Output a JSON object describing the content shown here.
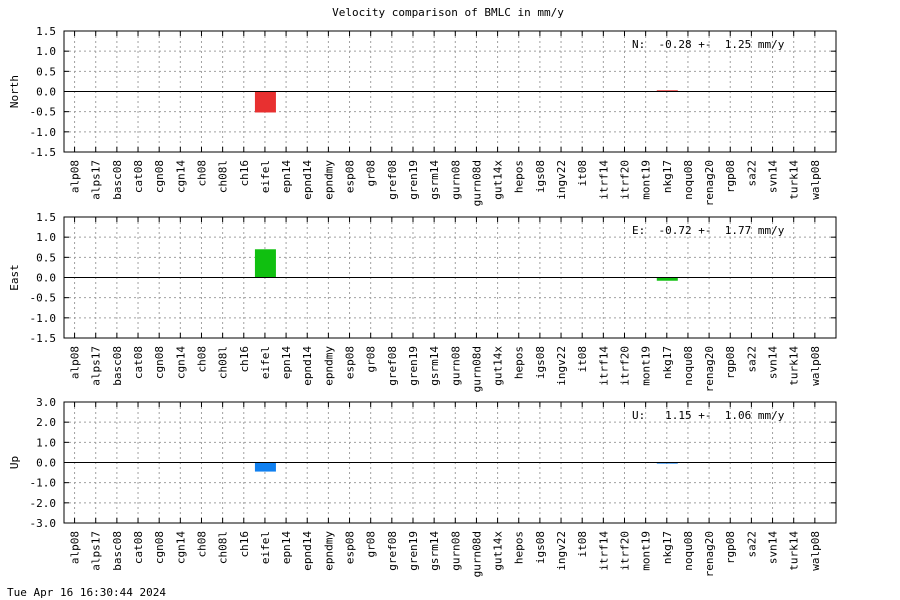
{
  "title": "Velocity comparison of BMLC in mm/y",
  "timestamp": "Tue Apr 16 16:30:44 2024",
  "colors": {
    "north": "#e83030",
    "east": "#10c010",
    "up": "#1080f0",
    "grid": "#a0a0a0"
  },
  "chart_data": [
    {
      "type": "bar",
      "ylabel": "North",
      "ylim": [
        -1.5,
        1.5
      ],
      "yticks": [
        -1.5,
        -1.0,
        -0.5,
        0.0,
        0.5,
        1.0,
        1.5
      ],
      "ytick_labels": [
        "-1.5",
        "-1.0",
        "-0.5",
        "0.0",
        "0.5",
        "1.0",
        "1.5"
      ],
      "categories": [
        "alp08",
        "alps17",
        "basc08",
        "cat08",
        "cgn08",
        "cgn14",
        "ch08",
        "ch08l",
        "ch16",
        "eifel",
        "epn14",
        "epnd14",
        "epndmy",
        "esp08",
        "gr08",
        "gref08",
        "gren19",
        "gsrm14",
        "gurn08",
        "gurn08d",
        "gut14x",
        "hepos",
        "igs08",
        "ingv22",
        "it08",
        "itrf14",
        "itrf20",
        "mont19",
        "nkg17",
        "noqu08",
        "renag20",
        "rgp08",
        "sa22",
        "svn14",
        "turk14",
        "walp08"
      ],
      "values": [
        0,
        0,
        0,
        0,
        0,
        0,
        0,
        0,
        0,
        -0.52,
        0,
        0,
        0,
        0,
        0,
        0,
        0,
        0,
        0,
        0,
        0,
        0,
        0,
        0,
        0,
        0,
        0,
        0,
        0.03,
        0,
        0,
        0,
        0,
        0,
        0,
        0
      ],
      "annotation": "N:  -0.28 +-  1.25 mm/y",
      "grid": true
    },
    {
      "type": "bar",
      "ylabel": "East",
      "ylim": [
        -1.5,
        1.5
      ],
      "yticks": [
        -1.5,
        -1.0,
        -0.5,
        0.0,
        0.5,
        1.0,
        1.5
      ],
      "ytick_labels": [
        "-1.5",
        "-1.0",
        "-0.5",
        "0.0",
        "0.5",
        "1.0",
        "1.5"
      ],
      "categories": [
        "alp08",
        "alps17",
        "basc08",
        "cat08",
        "cgn08",
        "cgn14",
        "ch08",
        "ch08l",
        "ch16",
        "eifel",
        "epn14",
        "epnd14",
        "epndmy",
        "esp08",
        "gr08",
        "gref08",
        "gren19",
        "gsrm14",
        "gurn08",
        "gurn08d",
        "gut14x",
        "hepos",
        "igs08",
        "ingv22",
        "it08",
        "itrf14",
        "itrf20",
        "mont19",
        "nkg17",
        "noqu08",
        "renag20",
        "rgp08",
        "sa22",
        "svn14",
        "turk14",
        "walp08"
      ],
      "values": [
        0,
        0,
        0,
        0,
        0,
        0,
        0,
        0,
        0,
        0.7,
        0,
        0,
        0,
        0,
        0,
        0,
        0,
        0,
        0,
        0,
        0,
        0,
        0,
        0,
        0,
        0,
        0,
        0,
        -0.08,
        0,
        0,
        0,
        0,
        0,
        0,
        0
      ],
      "annotation": "E:  -0.72 +-  1.77 mm/y",
      "grid": true
    },
    {
      "type": "bar",
      "ylabel": "Up",
      "ylim": [
        -3.0,
        3.0
      ],
      "yticks": [
        -3.0,
        -2.0,
        -1.0,
        0.0,
        1.0,
        2.0,
        3.0
      ],
      "ytick_labels": [
        "-3.0",
        "-2.0",
        "-1.0",
        "0.0",
        "1.0",
        "2.0",
        "3.0"
      ],
      "categories": [
        "alp08",
        "alps17",
        "basc08",
        "cat08",
        "cgn08",
        "cgn14",
        "ch08",
        "ch08l",
        "ch16",
        "eifel",
        "epn14",
        "epnd14",
        "epndmy",
        "esp08",
        "gr08",
        "gref08",
        "gren19",
        "gsrm14",
        "gurn08",
        "gurn08d",
        "gut14x",
        "hepos",
        "igs08",
        "ingv22",
        "it08",
        "itrf14",
        "itrf20",
        "mont19",
        "nkg17",
        "noqu08",
        "renag20",
        "rgp08",
        "sa22",
        "svn14",
        "turk14",
        "walp08"
      ],
      "values": [
        0,
        0,
        0,
        0,
        0,
        0,
        0,
        0,
        0,
        -0.45,
        0,
        0,
        0,
        0,
        0,
        0,
        0,
        0,
        0,
        0,
        0,
        0,
        0,
        0,
        0,
        0,
        0,
        0,
        0.02,
        0,
        0,
        0,
        0,
        0,
        0,
        0
      ],
      "annotation": "U:   1.15 +-  1.06 mm/y",
      "grid": true
    }
  ]
}
